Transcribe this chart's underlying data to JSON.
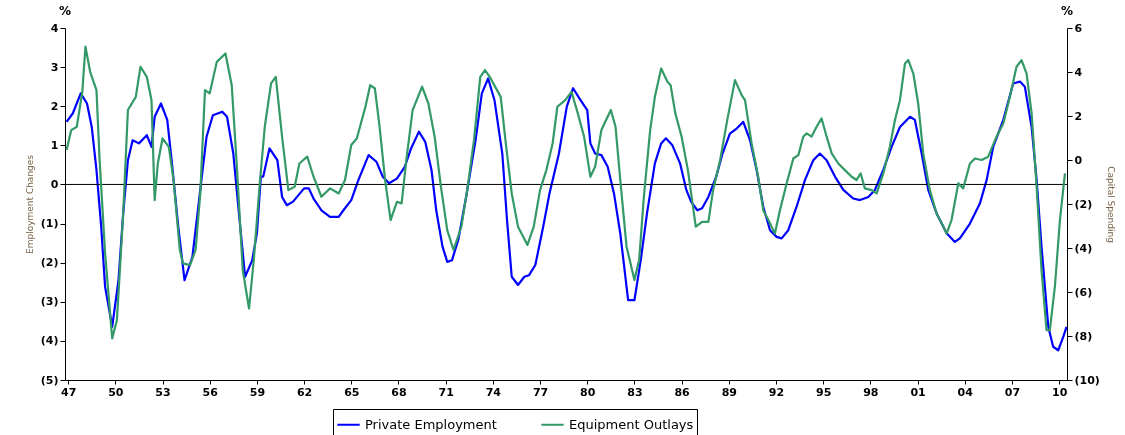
{
  "chart_data": {
    "type": "line",
    "ylabel": "Employment Changes",
    "y2label": "Capital Spending",
    "legend": "bottom",
    "annotations": [
      "%",
      "%"
    ],
    "xlim": [
      1946.8,
      2010.5
    ],
    "xticks": [
      {
        "value": 1947,
        "label": "47"
      },
      {
        "value": 1950,
        "label": "50"
      },
      {
        "value": 1953,
        "label": "53"
      },
      {
        "value": 1956,
        "label": "56"
      },
      {
        "value": 1959,
        "label": "59"
      },
      {
        "value": 1962,
        "label": "62"
      },
      {
        "value": 1965,
        "label": "65"
      },
      {
        "value": 1968,
        "label": "68"
      },
      {
        "value": 1971,
        "label": "71"
      },
      {
        "value": 1974,
        "label": "74"
      },
      {
        "value": 1977,
        "label": "77"
      },
      {
        "value": 1980,
        "label": "80"
      },
      {
        "value": 1983,
        "label": "83"
      },
      {
        "value": 1986,
        "label": "86"
      },
      {
        "value": 1989,
        "label": "89"
      },
      {
        "value": 1992,
        "label": "92"
      },
      {
        "value": 1995,
        "label": "95"
      },
      {
        "value": 1998,
        "label": "98"
      },
      {
        "value": 2001,
        "label": "01"
      },
      {
        "value": 2004,
        "label": "04"
      },
      {
        "value": 2007,
        "label": "07"
      },
      {
        "value": 2010,
        "label": "10"
      }
    ],
    "ylim": [
      -5,
      4
    ],
    "yticks": [
      {
        "value": -5,
        "label": "(5)"
      },
      {
        "value": -4,
        "label": "(4)"
      },
      {
        "value": -3,
        "label": "(3)"
      },
      {
        "value": -2,
        "label": "(2)"
      },
      {
        "value": -1,
        "label": "(1)"
      },
      0,
      1,
      2,
      3,
      4
    ],
    "y2lim": [
      -10,
      6
    ],
    "y2ticks": [
      {
        "value": -10,
        "label": "(10)"
      },
      {
        "value": -8,
        "label": "(8)"
      },
      {
        "value": -6,
        "label": "(6)"
      },
      {
        "value": -4,
        "label": "(4)"
      },
      {
        "value": -2,
        "label": "(2)"
      },
      0,
      2,
      4,
      6
    ],
    "ref_lines": [
      {
        "axis": "y",
        "value": 0,
        "color": "#000000"
      }
    ],
    "series": [
      {
        "name": "Private Employment",
        "color": "#0000ff",
        "x": [
          1946.9,
          1947.3,
          1947.8,
          1948.2,
          1948.5,
          1948.8,
          1949.1,
          1949.35,
          1949.8,
          1950.2,
          1950.5,
          1950.8,
          1951.1,
          1951.5,
          1952.0,
          1952.3,
          1952.5,
          1952.9,
          1953.3,
          1953.6,
          1954.0,
          1954.4,
          1954.9,
          1955.4,
          1955.8,
          1956.2,
          1956.8,
          1957.1,
          1957.5,
          1957.9,
          1958.25,
          1958.7,
          1959.0,
          1959.25,
          1959.4,
          1959.8,
          1960.3,
          1960.6,
          1960.9,
          1961.3,
          1962.0,
          1962.3,
          1962.6,
          1963.1,
          1963.65,
          1964.2,
          1964.5,
          1965.0,
          1965.45,
          1966.1,
          1966.6,
          1967.0,
          1967.4,
          1967.9,
          1968.4,
          1968.8,
          1969.3,
          1969.7,
          1970.1,
          1970.4,
          1970.8,
          1971.1,
          1971.4,
          1971.8,
          1972.3,
          1972.9,
          1973.3,
          1973.7,
          1974.1,
          1974.6,
          1974.9,
          1975.2,
          1975.6,
          1976.0,
          1976.3,
          1976.7,
          1977.2,
          1977.6,
          1978.2,
          1978.7,
          1979.1,
          1979.5,
          1980.0,
          1980.2,
          1980.5,
          1980.9,
          1981.3,
          1981.7,
          1982.1,
          1982.6,
          1983.0,
          1983.4,
          1983.8,
          1984.3,
          1984.7,
          1985.0,
          1985.4,
          1985.9,
          1986.3,
          1986.6,
          1987.0,
          1987.3,
          1987.7,
          1988.2,
          1988.6,
          1989.07,
          1989.5,
          1989.92,
          1990.35,
          1990.77,
          1991.19,
          1991.62,
          1992.04,
          1992.36,
          1992.78,
          1993.31,
          1993.84,
          1994.37,
          1994.79,
          1995.22,
          1995.75,
          1996.28,
          1996.91,
          1997.34,
          1997.87,
          1998.29,
          1998.82,
          1999.35,
          1999.88,
          2000.52,
          2000.83,
          2001.26,
          2001.68,
          2002.21,
          2002.85,
          2003.37,
          2003.69,
          2004.33,
          2004.96,
          2005.39,
          2005.81,
          2006.45,
          2007.08,
          2007.51,
          2007.82,
          2008.25,
          2008.57,
          2008.88,
          2009.31,
          2009.62,
          2009.94,
          2010.26,
          2010.47
        ],
        "values": [
          1.6,
          1.82,
          2.33,
          2.07,
          1.47,
          0.37,
          -1.08,
          -2.62,
          -3.64,
          -2.45,
          -0.74,
          0.62,
          1.13,
          1.05,
          1.26,
          0.96,
          1.73,
          2.07,
          1.65,
          0.54,
          -1.08,
          -2.45,
          -1.85,
          -0.14,
          1.22,
          1.77,
          1.86,
          1.73,
          0.79,
          -0.91,
          -2.36,
          -1.94,
          -1.25,
          0.2,
          0.2,
          0.92,
          0.62,
          -0.32,
          -0.53,
          -0.44,
          -0.1,
          -0.1,
          -0.36,
          -0.66,
          -0.83,
          -0.83,
          -0.66,
          -0.4,
          0.11,
          0.75,
          0.58,
          0.2,
          0.03,
          0.15,
          0.45,
          0.92,
          1.35,
          1.09,
          0.37,
          -0.66,
          -1.59,
          -1.98,
          -1.94,
          -1.42,
          -0.32,
          1.13,
          2.33,
          2.71,
          2.16,
          0.79,
          -0.91,
          -2.36,
          -2.57,
          -2.36,
          -2.32,
          -2.06,
          -1.08,
          -0.23,
          0.79,
          1.99,
          2.46,
          2.2,
          1.9,
          1.05,
          0.79,
          0.75,
          0.45,
          -0.23,
          -1.25,
          -2.96,
          -2.96,
          -1.94,
          -0.74,
          0.54,
          1.05,
          1.18,
          1.01,
          0.54,
          -0.14,
          -0.44,
          -0.66,
          -0.61,
          -0.32,
          0.2,
          0.79,
          1.3,
          1.43,
          1.6,
          1.13,
          0.37,
          -0.57,
          -1.17,
          -1.34,
          -1.38,
          -1.17,
          -0.57,
          0.11,
          0.62,
          0.79,
          0.62,
          0.2,
          -0.14,
          -0.36,
          -0.4,
          -0.32,
          -0.14,
          0.37,
          0.96,
          1.47,
          1.73,
          1.65,
          0.79,
          -0.14,
          -0.74,
          -1.25,
          -1.47,
          -1.38,
          -1.0,
          -0.49,
          0.11,
          0.96,
          1.65,
          2.58,
          2.63,
          2.5,
          1.47,
          0.11,
          -1.59,
          -3.64,
          -4.15,
          -4.24,
          -3.9,
          -3.64
        ]
      },
      {
        "name": "Equipment Outlays",
        "color": "#339966",
        "axis": "y2",
        "x": [
          1946.9,
          1947.2,
          1947.55,
          1947.9,
          1948.1,
          1948.4,
          1948.8,
          1949.0,
          1949.35,
          1949.8,
          1950.1,
          1950.5,
          1950.8,
          1951.3,
          1951.6,
          1952.0,
          1952.3,
          1952.5,
          1952.7,
          1953.0,
          1953.4,
          1953.7,
          1954.1,
          1954.3,
          1954.75,
          1955.1,
          1955.4,
          1955.7,
          1956.0,
          1956.45,
          1957.0,
          1957.4,
          1957.7,
          1958.1,
          1958.5,
          1958.8,
          1959.2,
          1959.5,
          1959.9,
          1960.2,
          1960.6,
          1961.0,
          1961.4,
          1961.7,
          1962.2,
          1962.6,
          1963.1,
          1963.65,
          1964.2,
          1964.6,
          1965.0,
          1965.35,
          1965.9,
          1966.2,
          1966.5,
          1966.8,
          1967.15,
          1967.5,
          1967.9,
          1968.2,
          1968.5,
          1968.9,
          1969.5,
          1969.9,
          1970.3,
          1970.7,
          1971.1,
          1971.5,
          1972.0,
          1972.4,
          1972.8,
          1973.2,
          1973.5,
          1973.8,
          1974.5,
          1974.8,
          1975.2,
          1975.6,
          1976.2,
          1976.6,
          1977.0,
          1977.4,
          1977.8,
          1978.1,
          1978.6,
          1979.0,
          1979.4,
          1979.8,
          1980.2,
          1980.5,
          1980.9,
          1981.5,
          1981.8,
          1982.1,
          1982.5,
          1983.0,
          1983.3,
          1983.6,
          1984.0,
          1984.3,
          1984.7,
          1985.1,
          1985.3,
          1985.6,
          1986.0,
          1986.4,
          1986.9,
          1987.3,
          1987.7,
          1988.0,
          1988.45,
          1988.9,
          1989.39,
          1989.82,
          1990.03,
          1990.45,
          1990.87,
          1991.19,
          1991.62,
          1991.93,
          1992.25,
          1992.68,
          1993.1,
          1993.42,
          1993.73,
          1993.95,
          1994.26,
          1994.58,
          1994.9,
          1995.22,
          1995.54,
          1995.96,
          1996.38,
          1996.81,
          1997.12,
          1997.38,
          1997.65,
          1998.08,
          1998.4,
          1998.82,
          1999.24,
          1999.56,
          1999.88,
          2000.2,
          2000.41,
          2000.73,
          2001.04,
          2001.36,
          2001.78,
          2002.21,
          2002.53,
          2002.85,
          2003.16,
          2003.59,
          2003.9,
          2004.33,
          2004.65,
          2005.07,
          2005.49,
          2006.02,
          2006.45,
          2006.87,
          2007.29,
          2007.61,
          2007.93,
          2008.25,
          2008.57,
          2008.88,
          2009.2,
          2009.41,
          2009.73,
          2010.05,
          2010.37
        ],
        "values": [
          0.45,
          1.36,
          1.51,
          3.1,
          5.15,
          4.01,
          3.18,
          0.0,
          -4.25,
          -8.11,
          -7.28,
          -2.43,
          2.27,
          2.87,
          4.24,
          3.78,
          2.72,
          -1.82,
          -0.16,
          0.98,
          0.6,
          -0.91,
          -4.09,
          -4.7,
          -4.78,
          -4.09,
          -1.52,
          3.18,
          3.03,
          4.46,
          4.84,
          3.4,
          0.0,
          -5.0,
          -6.75,
          -4.55,
          -0.91,
          1.51,
          3.48,
          3.78,
          1.06,
          -1.37,
          -1.22,
          -0.16,
          0.15,
          -0.76,
          -1.67,
          -1.29,
          -1.52,
          -0.91,
          0.68,
          0.98,
          2.42,
          3.4,
          3.25,
          1.51,
          -0.91,
          -2.73,
          -1.9,
          -1.97,
          0.0,
          2.27,
          3.33,
          2.57,
          1.06,
          -1.22,
          -3.19,
          -4.09,
          -3.03,
          -1.22,
          0.9,
          3.78,
          4.09,
          3.78,
          2.87,
          0.9,
          -1.52,
          -3.03,
          -3.86,
          -3.03,
          -1.37,
          -0.46,
          0.75,
          2.42,
          2.72,
          3.1,
          2.12,
          1.06,
          -0.76,
          -0.31,
          1.36,
          2.27,
          1.51,
          -0.91,
          -3.94,
          -5.46,
          -4.55,
          -1.67,
          1.36,
          2.87,
          4.16,
          3.56,
          3.4,
          2.12,
          1.06,
          -0.46,
          -3.03,
          -2.81,
          -2.81,
          -1.37,
          0.0,
          1.81,
          3.63,
          2.95,
          2.72,
          0.75,
          -0.76,
          -2.28,
          -2.88,
          -3.34,
          -2.28,
          -1.06,
          0.07,
          0.22,
          1.06,
          1.21,
          1.06,
          1.51,
          1.89,
          1.06,
          0.3,
          -0.16,
          -0.46,
          -0.76,
          -0.91,
          -0.61,
          -1.29,
          -1.37,
          -1.52,
          -0.61,
          0.6,
          1.81,
          2.72,
          4.39,
          4.54,
          3.93,
          2.57,
          0.3,
          -1.37,
          -2.43,
          -2.88,
          -3.34,
          -2.73,
          -1.06,
          -1.29,
          -0.16,
          0.07,
          0.0,
          0.15,
          1.06,
          1.66,
          2.87,
          4.24,
          4.54,
          3.93,
          2.12,
          -1.22,
          -5.0,
          -7.73,
          -7.73,
          -5.76,
          -2.73,
          -0.61
        ]
      }
    ]
  }
}
